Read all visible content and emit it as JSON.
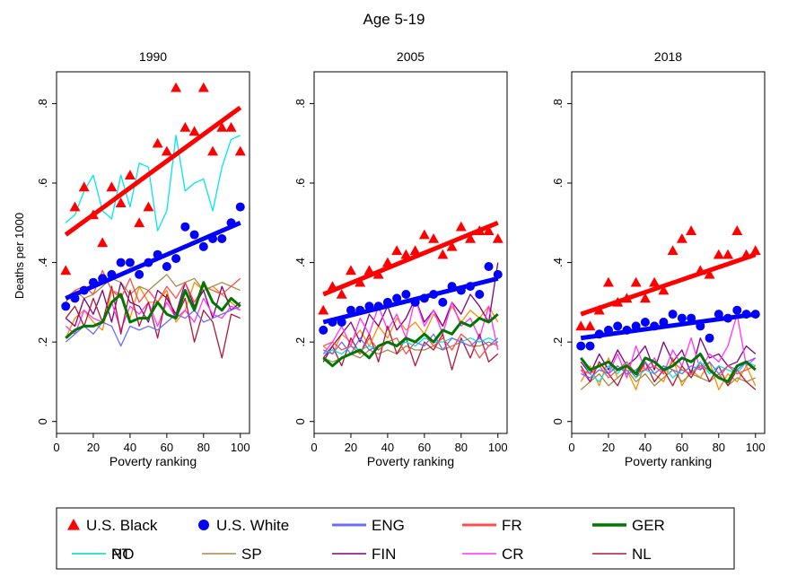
{
  "chart_data": {
    "type": "scatter",
    "title": "Age 5-19",
    "xlabel": "Poverty ranking",
    "ylabel": "Deaths per 1000",
    "xlim": [
      0,
      105
    ],
    "ylim": [
      -0.03,
      0.88
    ],
    "x_ticks": [
      "0",
      "20",
      "40",
      "60",
      "80",
      "100"
    ],
    "y_ticks": [
      "0",
      ".2",
      ".4",
      ".6",
      ".8"
    ],
    "grid": false,
    "legend_position": "bottom",
    "legend": [
      {
        "label": "U.S. Black",
        "marker": "triangle",
        "color": "#ff0000"
      },
      {
        "label": "U.S. White",
        "marker": "circle",
        "color": "#0000ff"
      },
      {
        "label": "ENG",
        "marker": "line",
        "color": "#6b6bff"
      },
      {
        "label": "FR",
        "marker": "line",
        "color": "#ff4d4d"
      },
      {
        "label": "GER",
        "marker": "line",
        "color": "#007800",
        "thick": true
      },
      {
        "label": "NO",
        "marker": "line",
        "color": "#ff8c00"
      },
      {
        "label": "SP",
        "marker": "line",
        "color": "#a88a4a"
      },
      {
        "label": "FIN",
        "marker": "line",
        "color": "#800080"
      },
      {
        "label": "CR",
        "marker": "line",
        "color": "#ff33ff"
      },
      {
        "label": "NL",
        "marker": "line",
        "color": "#b0173a"
      },
      {
        "label": "PT",
        "marker": "line",
        "color": "#00e5ee"
      }
    ],
    "x": [
      5,
      10,
      15,
      20,
      25,
      30,
      35,
      40,
      45,
      50,
      55,
      60,
      65,
      70,
      75,
      80,
      85,
      90,
      95,
      100
    ],
    "panels": [
      {
        "title": "1990",
        "black": [
          0.38,
          0.54,
          0.59,
          0.52,
          0.45,
          0.59,
          0.55,
          0.62,
          0.5,
          0.54,
          0.7,
          0.68,
          0.84,
          0.74,
          0.73,
          0.84,
          0.68,
          0.74,
          0.74,
          0.68
        ],
        "black_fit": [
          0.47,
          0.79
        ],
        "white": [
          0.29,
          0.31,
          0.33,
          0.35,
          0.36,
          0.37,
          0.4,
          0.4,
          0.37,
          0.4,
          0.42,
          0.39,
          0.41,
          0.49,
          0.47,
          0.44,
          0.46,
          0.46,
          0.5,
          0.54
        ],
        "white_fit": [
          0.31,
          0.5
        ],
        "countries": {
          "ENG": [
            0.2,
            0.22,
            0.24,
            0.22,
            0.25,
            0.24,
            0.19,
            0.24,
            0.23,
            0.24,
            0.23,
            0.25,
            0.27,
            0.26,
            0.28,
            0.25,
            0.26,
            0.27,
            0.28,
            0.29
          ],
          "FR": [
            0.31,
            0.33,
            0.34,
            0.32,
            0.38,
            0.33,
            0.31,
            0.36,
            0.3,
            0.33,
            0.3,
            0.34,
            0.31,
            0.35,
            0.3,
            0.34,
            0.33,
            0.32,
            0.34,
            0.36
          ],
          "GER": [
            0.21,
            0.23,
            0.24,
            0.24,
            0.25,
            0.3,
            0.32,
            0.25,
            0.26,
            0.26,
            0.3,
            0.27,
            0.26,
            0.33,
            0.28,
            0.35,
            0.3,
            0.28,
            0.31,
            0.29
          ],
          "NO": [
            0.21,
            0.26,
            0.28,
            0.25,
            0.23,
            0.33,
            0.32,
            0.26,
            0.34,
            0.3,
            0.3,
            0.33,
            0.25,
            0.28,
            0.35,
            0.33,
            0.34,
            0.32,
            0.3,
            0.28
          ],
          "SP": [
            0.3,
            0.33,
            0.31,
            0.32,
            0.34,
            0.36,
            0.35,
            0.32,
            0.34,
            0.33,
            0.35,
            0.37,
            0.34,
            0.35,
            0.36,
            0.33,
            0.34,
            0.35,
            0.34,
            0.33
          ],
          "FIN": [
            0.26,
            0.24,
            0.31,
            0.27,
            0.33,
            0.25,
            0.35,
            0.3,
            0.29,
            0.25,
            0.33,
            0.31,
            0.27,
            0.35,
            0.29,
            0.33,
            0.26,
            0.34,
            0.28,
            0.3
          ],
          "CR": [
            0.24,
            0.22,
            0.28,
            0.26,
            0.25,
            0.3,
            0.23,
            0.29,
            0.27,
            0.3,
            0.24,
            0.3,
            0.26,
            0.28,
            0.25,
            0.31,
            0.27,
            0.26,
            0.29,
            0.28
          ],
          "NL": [
            0.26,
            0.29,
            0.24,
            0.31,
            0.25,
            0.34,
            0.22,
            0.33,
            0.24,
            0.3,
            0.21,
            0.32,
            0.26,
            0.31,
            0.2,
            0.28,
            0.25,
            0.16,
            0.27,
            0.26
          ],
          "PT": [
            0.5,
            0.52,
            0.58,
            0.62,
            0.53,
            0.51,
            0.62,
            0.54,
            0.65,
            0.64,
            0.48,
            0.53,
            0.72,
            0.58,
            0.6,
            0.61,
            0.53,
            0.64,
            0.71,
            0.72
          ]
        }
      },
      {
        "title": "2005",
        "black": [
          0.28,
          0.34,
          0.32,
          0.38,
          0.35,
          0.38,
          0.37,
          0.4,
          0.43,
          0.42,
          0.43,
          0.47,
          0.46,
          0.42,
          0.44,
          0.49,
          0.46,
          0.48,
          0.48,
          0.46
        ],
        "black_fit": [
          0.32,
          0.5
        ],
        "white": [
          0.23,
          0.25,
          0.25,
          0.28,
          0.28,
          0.29,
          0.29,
          0.3,
          0.31,
          0.32,
          0.3,
          0.31,
          0.32,
          0.3,
          0.34,
          0.33,
          0.34,
          0.32,
          0.39,
          0.37
        ],
        "white_fit": [
          0.25,
          0.36
        ],
        "countries": {
          "ENG": [
            0.18,
            0.17,
            0.2,
            0.17,
            0.21,
            0.18,
            0.19,
            0.2,
            0.19,
            0.21,
            0.2,
            0.19,
            0.22,
            0.18,
            0.21,
            0.2,
            0.19,
            0.21,
            0.19,
            0.21
          ],
          "FR": [
            0.19,
            0.2,
            0.18,
            0.19,
            0.17,
            0.21,
            0.18,
            0.2,
            0.21,
            0.17,
            0.2,
            0.22,
            0.19,
            0.21,
            0.18,
            0.22,
            0.2,
            0.16,
            0.19,
            0.2
          ],
          "GER": [
            0.16,
            0.14,
            0.16,
            0.17,
            0.18,
            0.16,
            0.19,
            0.2,
            0.19,
            0.21,
            0.2,
            0.22,
            0.2,
            0.23,
            0.22,
            0.25,
            0.24,
            0.26,
            0.25,
            0.27
          ],
          "NO": [
            0.19,
            0.17,
            0.22,
            0.2,
            0.23,
            0.19,
            0.24,
            0.21,
            0.26,
            0.23,
            0.25,
            0.22,
            0.27,
            0.24,
            0.29,
            0.25,
            0.28,
            0.26,
            0.29,
            0.25
          ],
          "SP": [
            0.16,
            0.15,
            0.16,
            0.17,
            0.16,
            0.18,
            0.17,
            0.18,
            0.17,
            0.19,
            0.18,
            0.18,
            0.19,
            0.18,
            0.19,
            0.2,
            0.19,
            0.19,
            0.2,
            0.19
          ],
          "FIN": [
            0.15,
            0.19,
            0.22,
            0.25,
            0.2,
            0.27,
            0.24,
            0.29,
            0.23,
            0.26,
            0.31,
            0.25,
            0.28,
            0.24,
            0.3,
            0.27,
            0.32,
            0.29,
            0.25,
            0.4
          ],
          "CR": [
            0.17,
            0.2,
            0.24,
            0.19,
            0.26,
            0.22,
            0.29,
            0.23,
            0.27,
            0.21,
            0.31,
            0.24,
            0.28,
            0.22,
            0.3,
            0.24,
            0.26,
            0.21,
            0.29,
            0.18
          ],
          "NL": [
            0.16,
            0.19,
            0.14,
            0.21,
            0.17,
            0.22,
            0.15,
            0.24,
            0.17,
            0.21,
            0.14,
            0.2,
            0.18,
            0.22,
            0.13,
            0.21,
            0.16,
            0.22,
            0.15,
            0.17
          ],
          "PT": [
            0.17,
            0.18,
            0.17,
            0.19,
            0.18,
            0.19,
            0.18,
            0.2,
            0.19,
            0.2,
            0.19,
            0.21,
            0.2,
            0.2,
            0.21,
            0.2,
            0.21,
            0.2,
            0.21,
            0.2
          ]
        }
      },
      {
        "title": "2018",
        "black": [
          0.24,
          0.24,
          0.28,
          0.35,
          0.3,
          0.31,
          0.35,
          0.31,
          0.35,
          0.33,
          0.43,
          0.46,
          0.48,
          0.38,
          0.37,
          0.42,
          0.42,
          0.48,
          0.42,
          0.43
        ],
        "black_fit": [
          0.27,
          0.42
        ],
        "white": [
          0.19,
          0.19,
          0.22,
          0.23,
          0.24,
          0.23,
          0.24,
          0.25,
          0.24,
          0.25,
          0.27,
          0.26,
          0.26,
          0.24,
          0.21,
          0.27,
          0.26,
          0.28,
          0.27,
          0.27
        ],
        "white_fit": [
          0.21,
          0.27
        ],
        "countries": {
          "ENG": [
            0.12,
            0.11,
            0.13,
            0.12,
            0.14,
            0.12,
            0.13,
            0.15,
            0.12,
            0.14,
            0.13,
            0.12,
            0.14,
            0.13,
            0.15,
            0.12,
            0.14,
            0.13,
            0.15,
            0.16
          ],
          "FR": [
            0.13,
            0.12,
            0.14,
            0.11,
            0.13,
            0.15,
            0.12,
            0.13,
            0.14,
            0.12,
            0.15,
            0.13,
            0.12,
            0.14,
            0.13,
            0.11,
            0.14,
            0.12,
            0.13,
            0.14
          ],
          "GER": [
            0.16,
            0.13,
            0.14,
            0.15,
            0.13,
            0.14,
            0.12,
            0.16,
            0.15,
            0.13,
            0.14,
            0.16,
            0.15,
            0.17,
            0.13,
            0.11,
            0.1,
            0.14,
            0.15,
            0.13
          ],
          "NO": [
            0.1,
            0.14,
            0.09,
            0.16,
            0.11,
            0.13,
            0.08,
            0.15,
            0.12,
            0.1,
            0.16,
            0.09,
            0.13,
            0.11,
            0.15,
            0.08,
            0.12,
            0.1,
            0.14,
            0.09
          ],
          "SP": [
            0.08,
            0.1,
            0.12,
            0.09,
            0.11,
            0.13,
            0.1,
            0.12,
            0.09,
            0.11,
            0.13,
            0.1,
            0.12,
            0.11,
            0.1,
            0.12,
            0.09,
            0.11,
            0.1,
            0.11
          ],
          "FIN": [
            0.15,
            0.12,
            0.17,
            0.13,
            0.18,
            0.14,
            0.16,
            0.19,
            0.13,
            0.2,
            0.15,
            0.18,
            0.12,
            0.21,
            0.16,
            0.17,
            0.14,
            0.15,
            0.19,
            0.17
          ],
          "CR": [
            0.13,
            0.1,
            0.15,
            0.12,
            0.17,
            0.11,
            0.19,
            0.13,
            0.16,
            0.12,
            0.18,
            0.14,
            0.21,
            0.13,
            0.17,
            0.15,
            0.19,
            0.27,
            0.14,
            0.16
          ],
          "NL": [
            0.14,
            0.1,
            0.15,
            0.12,
            0.09,
            0.14,
            0.11,
            0.15,
            0.1,
            0.13,
            0.09,
            0.14,
            0.11,
            0.15,
            0.1,
            0.14,
            0.09,
            0.13,
            0.1,
            0.08
          ],
          "PT": [
            0.16,
            0.12,
            0.1,
            0.14,
            0.12,
            0.15,
            0.11,
            0.13,
            0.12,
            0.14,
            0.11,
            0.13,
            0.12,
            0.15,
            0.12,
            0.14,
            0.13,
            0.12,
            0.15,
            0.14
          ]
        }
      }
    ]
  }
}
